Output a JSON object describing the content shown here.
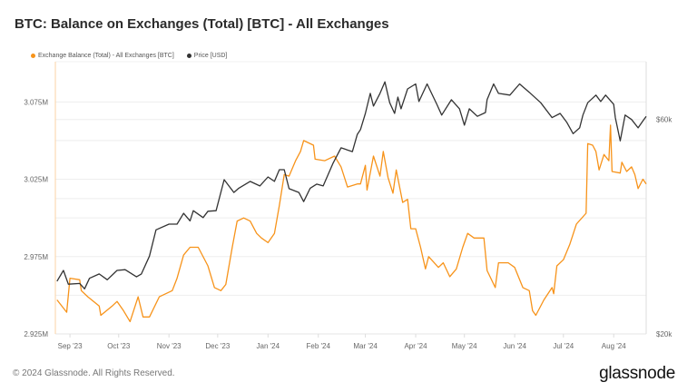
{
  "title": "BTC: Balance on Exchanges (Total) [BTC] - All Exchanges",
  "footer": "© 2024 Glassnode. All Rights Reserved.",
  "logo": "glassnode",
  "colors": {
    "balance": "#f7931a",
    "price": "#333333",
    "grid": "#eeeeee"
  },
  "chart_data": {
    "type": "line",
    "title": "BTC: Balance on Exchanges (Total) [BTC] - All Exchanges",
    "legend_position": "top-left",
    "grid": true,
    "xlim": [
      "2023-08-23",
      "2024-08-21"
    ],
    "x_ticks": [
      {
        "date": "2023-09-01",
        "label": "Sep '23"
      },
      {
        "date": "2023-10-01",
        "label": "Oct '23"
      },
      {
        "date": "2023-11-01",
        "label": "Nov '23"
      },
      {
        "date": "2023-12-01",
        "label": "Dec '23"
      },
      {
        "date": "2024-01-01",
        "label": "Jan '24"
      },
      {
        "date": "2024-02-01",
        "label": "Feb '24"
      },
      {
        "date": "2024-03-01",
        "label": "Mar '24"
      },
      {
        "date": "2024-04-01",
        "label": "Apr '24"
      },
      {
        "date": "2024-05-01",
        "label": "May '24"
      },
      {
        "date": "2024-06-01",
        "label": "Jun '24"
      },
      {
        "date": "2024-07-01",
        "label": "Jul '24"
      },
      {
        "date": "2024-08-01",
        "label": "Aug '24"
      }
    ],
    "y_left": {
      "scale": "linear",
      "ylim": [
        2925000,
        3101000
      ],
      "ticks": [
        {
          "value": 3075000,
          "label": "3.075M"
        },
        {
          "value": 3025000,
          "label": "3.025M"
        },
        {
          "value": 2975000,
          "label": "2.975M"
        },
        {
          "value": 2925000,
          "label": "2.925M"
        }
      ],
      "grid_values": [
        3075000,
        3050000,
        3025000,
        3000000,
        2975000,
        2950000
      ]
    },
    "y_right": {
      "scale": "log",
      "ylim": [
        20000,
        80700
      ],
      "ticks": [
        {
          "value": 60000,
          "label": "$60k"
        },
        {
          "value": 20000,
          "label": "$20k"
        }
      ],
      "grid_values": [
        60000,
        40000
      ]
    },
    "series": [
      {
        "name": "Exchange Balance (Total) - All Exchanges [BTC]",
        "axis": "left",
        "color": "#f7931a",
        "points": [
          [
            "2023-08-24",
            2947000
          ],
          [
            "2023-08-30",
            2939000
          ],
          [
            "2023-09-01",
            2961000
          ],
          [
            "2023-09-07",
            2960000
          ],
          [
            "2023-09-08",
            2953000
          ],
          [
            "2023-09-12",
            2949000
          ],
          [
            "2023-09-19",
            2943000
          ],
          [
            "2023-09-20",
            2937000
          ],
          [
            "2023-09-27",
            2943000
          ],
          [
            "2023-09-30",
            2946000
          ],
          [
            "2023-10-04",
            2940000
          ],
          [
            "2023-10-08",
            2933000
          ],
          [
            "2023-10-13",
            2949000
          ],
          [
            "2023-10-16",
            2936000
          ],
          [
            "2023-10-20",
            2936000
          ],
          [
            "2023-10-26",
            2949000
          ],
          [
            "2023-11-03",
            2953000
          ],
          [
            "2023-11-06",
            2961000
          ],
          [
            "2023-11-10",
            2976000
          ],
          [
            "2023-11-14",
            2981000
          ],
          [
            "2023-11-19",
            2981000
          ],
          [
            "2023-11-25",
            2969000
          ],
          [
            "2023-11-29",
            2955000
          ],
          [
            "2023-12-03",
            2953000
          ],
          [
            "2023-12-06",
            2957000
          ],
          [
            "2023-12-10",
            2981000
          ],
          [
            "2023-12-13",
            2998000
          ],
          [
            "2023-12-17",
            3000000
          ],
          [
            "2023-12-21",
            2998000
          ],
          [
            "2023-12-25",
            2990000
          ],
          [
            "2023-12-28",
            2987000
          ],
          [
            "2024-01-01",
            2984000
          ],
          [
            "2024-01-05",
            2990000
          ],
          [
            "2024-01-08",
            3008000
          ],
          [
            "2024-01-11",
            3028000
          ],
          [
            "2024-01-14",
            3027000
          ],
          [
            "2024-01-18",
            3037000
          ],
          [
            "2024-01-21",
            3043000
          ],
          [
            "2024-01-23",
            3050000
          ],
          [
            "2024-01-29",
            3047000
          ],
          [
            "2024-01-30",
            3038000
          ],
          [
            "2024-02-05",
            3037000
          ],
          [
            "2024-02-11",
            3040000
          ],
          [
            "2024-02-15",
            3033000
          ],
          [
            "2024-02-19",
            3020000
          ],
          [
            "2024-02-25",
            3022000
          ],
          [
            "2024-02-27",
            3022000
          ],
          [
            "2024-03-01",
            3034000
          ],
          [
            "2024-03-02",
            3018000
          ],
          [
            "2024-03-06",
            3040000
          ],
          [
            "2024-03-10",
            3027000
          ],
          [
            "2024-03-12",
            3043000
          ],
          [
            "2024-03-15",
            3026000
          ],
          [
            "2024-03-18",
            3016000
          ],
          [
            "2024-03-20",
            3031000
          ],
          [
            "2024-03-24",
            3010000
          ],
          [
            "2024-03-27",
            3012000
          ],
          [
            "2024-03-29",
            2993000
          ],
          [
            "2024-04-01",
            2993000
          ],
          [
            "2024-04-04",
            2981000
          ],
          [
            "2024-04-07",
            2967000
          ],
          [
            "2024-04-09",
            2975000
          ],
          [
            "2024-04-15",
            2968000
          ],
          [
            "2024-04-18",
            2971000
          ],
          [
            "2024-04-22",
            2962000
          ],
          [
            "2024-04-26",
            2967000
          ],
          [
            "2024-04-30",
            2981000
          ],
          [
            "2024-05-03",
            2990000
          ],
          [
            "2024-05-07",
            2987000
          ],
          [
            "2024-05-13",
            2987000
          ],
          [
            "2024-05-15",
            2966000
          ],
          [
            "2024-05-20",
            2955000
          ],
          [
            "2024-05-22",
            2971000
          ],
          [
            "2024-05-28",
            2971000
          ],
          [
            "2024-06-01",
            2968000
          ],
          [
            "2024-06-06",
            2955000
          ],
          [
            "2024-06-10",
            2953000
          ],
          [
            "2024-06-12",
            2940000
          ],
          [
            "2024-06-14",
            2937000
          ],
          [
            "2024-06-19",
            2947000
          ],
          [
            "2024-06-24",
            2955000
          ],
          [
            "2024-06-25",
            2951000
          ],
          [
            "2024-06-27",
            2969000
          ],
          [
            "2024-07-01",
            2973000
          ],
          [
            "2024-07-05",
            2983000
          ],
          [
            "2024-07-09",
            2996000
          ],
          [
            "2024-07-15",
            3003000
          ],
          [
            "2024-07-16",
            3048000
          ],
          [
            "2024-07-19",
            3047000
          ],
          [
            "2024-07-21",
            3043000
          ],
          [
            "2024-07-23",
            3031000
          ],
          [
            "2024-07-26",
            3041000
          ],
          [
            "2024-07-29",
            3037000
          ],
          [
            "2024-07-30",
            3060000
          ],
          [
            "2024-07-31",
            3030000
          ],
          [
            "2024-08-05",
            3029000
          ],
          [
            "2024-08-06",
            3036000
          ],
          [
            "2024-08-09",
            3030000
          ],
          [
            "2024-08-12",
            3033000
          ],
          [
            "2024-08-14",
            3028000
          ],
          [
            "2024-08-16",
            3019000
          ],
          [
            "2024-08-19",
            3025000
          ],
          [
            "2024-08-21",
            3022000
          ]
        ]
      },
      {
        "name": "Price [USD]",
        "axis": "right",
        "color": "#333333",
        "points": [
          [
            "2023-08-24",
            26200
          ],
          [
            "2023-08-28",
            27700
          ],
          [
            "2023-08-31",
            25800
          ],
          [
            "2023-09-07",
            25900
          ],
          [
            "2023-09-10",
            25200
          ],
          [
            "2023-09-13",
            26600
          ],
          [
            "2023-09-19",
            27200
          ],
          [
            "2023-09-24",
            26400
          ],
          [
            "2023-09-30",
            27700
          ],
          [
            "2023-10-05",
            27800
          ],
          [
            "2023-10-12",
            26800
          ],
          [
            "2023-10-15",
            27200
          ],
          [
            "2023-10-20",
            29800
          ],
          [
            "2023-10-24",
            34100
          ],
          [
            "2023-11-01",
            35100
          ],
          [
            "2023-11-06",
            35100
          ],
          [
            "2023-11-10",
            37100
          ],
          [
            "2023-11-14",
            35700
          ],
          [
            "2023-11-16",
            37600
          ],
          [
            "2023-11-22",
            36300
          ],
          [
            "2023-11-25",
            37500
          ],
          [
            "2023-11-30",
            37600
          ],
          [
            "2023-12-05",
            44100
          ],
          [
            "2023-12-11",
            41300
          ],
          [
            "2023-12-14",
            42200
          ],
          [
            "2023-12-21",
            43700
          ],
          [
            "2023-12-27",
            42700
          ],
          [
            "2024-01-01",
            44700
          ],
          [
            "2024-01-05",
            43700
          ],
          [
            "2024-01-08",
            46400
          ],
          [
            "2024-01-11",
            46400
          ],
          [
            "2024-01-14",
            42100
          ],
          [
            "2024-01-20",
            41300
          ],
          [
            "2024-01-23",
            39400
          ],
          [
            "2024-01-27",
            42200
          ],
          [
            "2024-01-31",
            43100
          ],
          [
            "2024-02-04",
            42700
          ],
          [
            "2024-02-10",
            47900
          ],
          [
            "2024-02-15",
            51900
          ],
          [
            "2024-02-22",
            50900
          ],
          [
            "2024-02-25",
            55600
          ],
          [
            "2024-02-27",
            57000
          ],
          [
            "2024-03-01",
            61900
          ],
          [
            "2024-03-04",
            68600
          ],
          [
            "2024-03-06",
            64300
          ],
          [
            "2024-03-10",
            68600
          ],
          [
            "2024-03-13",
            72800
          ],
          [
            "2024-03-16",
            65400
          ],
          [
            "2024-03-19",
            61900
          ],
          [
            "2024-03-21",
            67300
          ],
          [
            "2024-03-23",
            63400
          ],
          [
            "2024-03-27",
            70200
          ],
          [
            "2024-04-01",
            72000
          ],
          [
            "2024-04-03",
            65800
          ],
          [
            "2024-04-08",
            72000
          ],
          [
            "2024-04-14",
            64900
          ],
          [
            "2024-04-17",
            61400
          ],
          [
            "2024-04-23",
            66400
          ],
          [
            "2024-04-28",
            63400
          ],
          [
            "2024-05-01",
            58300
          ],
          [
            "2024-05-04",
            63400
          ],
          [
            "2024-05-09",
            61000
          ],
          [
            "2024-05-14",
            62200
          ],
          [
            "2024-05-15",
            66400
          ],
          [
            "2024-05-19",
            72000
          ],
          [
            "2024-05-22",
            68600
          ],
          [
            "2024-05-29",
            68000
          ],
          [
            "2024-06-04",
            72000
          ],
          [
            "2024-06-10",
            69000
          ],
          [
            "2024-06-17",
            65400
          ],
          [
            "2024-06-24",
            60600
          ],
          [
            "2024-06-29",
            61900
          ],
          [
            "2024-07-03",
            59200
          ],
          [
            "2024-07-07",
            55800
          ],
          [
            "2024-07-11",
            57500
          ],
          [
            "2024-07-13",
            61400
          ],
          [
            "2024-07-16",
            65400
          ],
          [
            "2024-07-21",
            68000
          ],
          [
            "2024-07-24",
            65800
          ],
          [
            "2024-07-27",
            68000
          ],
          [
            "2024-08-01",
            64900
          ],
          [
            "2024-08-02",
            60600
          ],
          [
            "2024-08-05",
            53800
          ],
          [
            "2024-08-08",
            61400
          ],
          [
            "2024-08-12",
            60000
          ],
          [
            "2024-08-16",
            57500
          ],
          [
            "2024-08-19",
            59600
          ],
          [
            "2024-08-21",
            61000
          ]
        ]
      }
    ]
  }
}
